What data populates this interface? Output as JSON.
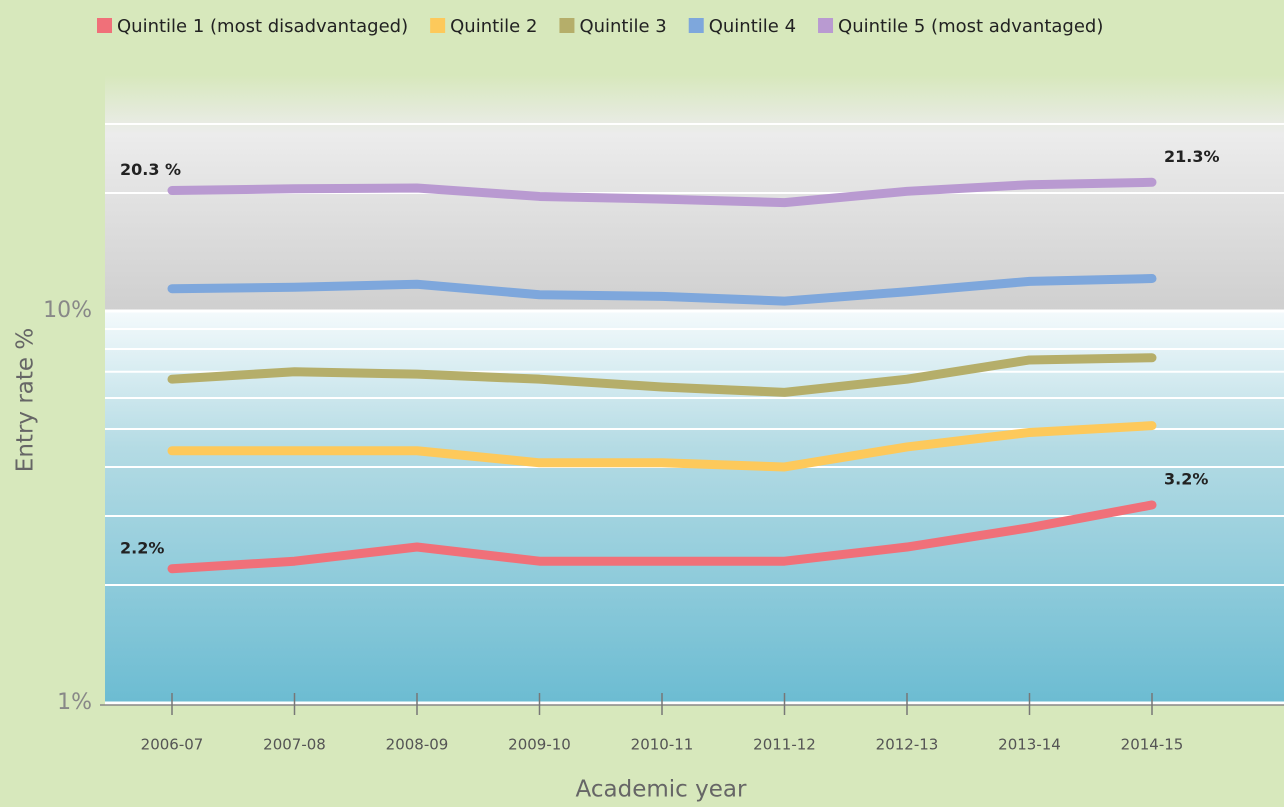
{
  "chart_data": {
    "type": "line",
    "x_label": "Academic year",
    "y_label": "Entry rate %",
    "log_scale": true,
    "grid": true,
    "categories": [
      "2006-07",
      "2007-08",
      "2008-09",
      "2009-10",
      "2010-11",
      "2011-12",
      "2012-13",
      "2013-14",
      "2014-15"
    ],
    "ylim": [
      1,
      40
    ],
    "yticks": [
      {
        "value": 1,
        "label": "1%"
      },
      {
        "value": 10,
        "label": "10%"
      }
    ],
    "grid_lines": [
      2,
      3,
      4,
      5,
      6,
      7,
      8,
      9,
      20,
      30
    ],
    "series": [
      {
        "name": "Quintile 1 (most disadvantaged)",
        "color": "#f07079",
        "values": [
          2.2,
          2.3,
          2.5,
          2.3,
          2.3,
          2.3,
          2.5,
          2.8,
          3.2
        ],
        "value_labels": [
          "2.2%",
          null,
          null,
          null,
          null,
          null,
          null,
          null,
          "3.2%"
        ]
      },
      {
        "name": "Quintile 2",
        "color": "#fdc95b",
        "values": [
          4.4,
          4.4,
          4.4,
          4.1,
          4.1,
          4.0,
          4.5,
          4.9,
          5.1
        ]
      },
      {
        "name": "Quintile 3",
        "color": "#b5ae6a",
        "values": [
          6.7,
          7.0,
          6.9,
          6.7,
          6.4,
          6.2,
          6.7,
          7.5,
          7.6
        ]
      },
      {
        "name": "Quintile 4",
        "color": "#7ea7dc",
        "values": [
          11.4,
          11.5,
          11.7,
          11.0,
          10.9,
          10.6,
          11.2,
          11.9,
          12.1
        ]
      },
      {
        "name": "Quintile 5 (most advantaged)",
        "color": "#b99ad1",
        "values": [
          20.3,
          20.5,
          20.6,
          19.6,
          19.3,
          18.9,
          20.2,
          21.0,
          21.3
        ],
        "value_labels": [
          "20.3 %",
          null,
          null,
          null,
          null,
          null,
          null,
          null,
          "21.3%"
        ]
      }
    ]
  }
}
